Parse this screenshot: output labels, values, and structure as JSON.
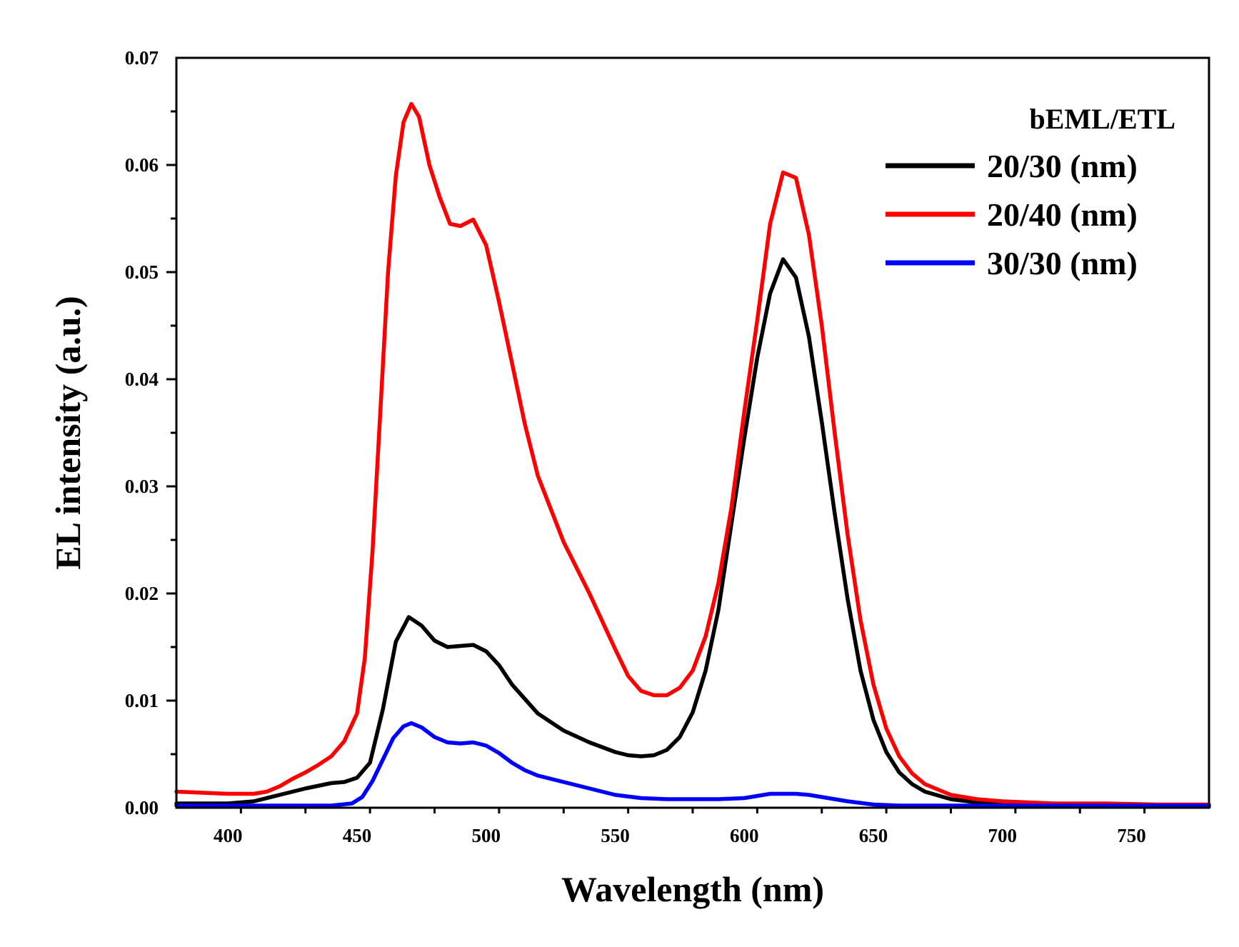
{
  "chart_data": {
    "type": "line",
    "title": "",
    "xlabel": "Wavelength (nm)",
    "ylabel": "EL intensity (a.u.)",
    "xlim": [
      380,
      780
    ],
    "ylim": [
      0,
      0.07
    ],
    "x_ticks": [
      400,
      450,
      500,
      550,
      600,
      650,
      700,
      750
    ],
    "x_tick_labels": [
      "400",
      "450",
      "500",
      "550",
      "600",
      "650",
      "700",
      "750"
    ],
    "y_ticks": [
      0,
      0.01,
      0.02,
      0.03,
      0.04,
      0.05,
      0.06,
      0.07
    ],
    "y_tick_labels": [
      "0.00",
      "0.01",
      "0.02",
      "0.03",
      "0.04",
      "0.05",
      "0.06",
      "0.07"
    ],
    "legend_title": "bEML/ETL",
    "legend_position": "top-right",
    "grid": false,
    "series": [
      {
        "name": "20/30 (nm)",
        "color": "#000000",
        "x": [
          380,
          400,
          410,
          420,
          430,
          440,
          445,
          450,
          455,
          460,
          465,
          470,
          475,
          480,
          485,
          490,
          495,
          500,
          505,
          510,
          520,
          530,
          540,
          550,
          555,
          560,
          565,
          570,
          575,
          580,
          585,
          590,
          595,
          600,
          605,
          610,
          615,
          620,
          625,
          630,
          635,
          640,
          645,
          650,
          655,
          660,
          665,
          670,
          680,
          690,
          700,
          710,
          720,
          740,
          760,
          780
        ],
        "y": [
          0.0004,
          0.0004,
          0.0006,
          0.0012,
          0.0018,
          0.0023,
          0.0024,
          0.0028,
          0.0042,
          0.0092,
          0.0155,
          0.0178,
          0.017,
          0.0156,
          0.015,
          0.0151,
          0.0152,
          0.0146,
          0.0133,
          0.0115,
          0.0088,
          0.0072,
          0.0061,
          0.0052,
          0.0049,
          0.0048,
          0.0049,
          0.0054,
          0.0066,
          0.0089,
          0.0128,
          0.0185,
          0.0265,
          0.0345,
          0.042,
          0.048,
          0.0512,
          0.0495,
          0.044,
          0.036,
          0.0275,
          0.0195,
          0.0128,
          0.0082,
          0.0052,
          0.0033,
          0.0022,
          0.0015,
          0.0008,
          0.0005,
          0.0003,
          0.0002,
          0.0001,
          0.0001,
          0.0001,
          0.0001
        ]
      },
      {
        "name": "20/40 (nm)",
        "color": "#ff0000",
        "x": [
          380,
          400,
          410,
          415,
          420,
          425,
          430,
          435,
          440,
          445,
          450,
          453,
          456,
          459,
          462,
          465,
          468,
          471,
          474,
          478,
          482,
          486,
          490,
          495,
          500,
          505,
          510,
          515,
          520,
          530,
          540,
          550,
          555,
          560,
          565,
          570,
          575,
          580,
          585,
          590,
          595,
          600,
          605,
          610,
          615,
          620,
          625,
          630,
          635,
          640,
          645,
          650,
          655,
          660,
          665,
          670,
          680,
          690,
          700,
          710,
          720,
          740,
          760,
          780
        ],
        "y": [
          0.0015,
          0.0013,
          0.0013,
          0.0015,
          0.002,
          0.0027,
          0.0033,
          0.004,
          0.0048,
          0.0062,
          0.0088,
          0.014,
          0.024,
          0.037,
          0.05,
          0.059,
          0.064,
          0.0657,
          0.0645,
          0.06,
          0.057,
          0.0545,
          0.0543,
          0.0549,
          0.0525,
          0.0472,
          0.0415,
          0.0358,
          0.031,
          0.0248,
          0.02,
          0.0148,
          0.0123,
          0.0109,
          0.0105,
          0.0105,
          0.0112,
          0.0128,
          0.016,
          0.021,
          0.028,
          0.037,
          0.0455,
          0.0545,
          0.0593,
          0.0588,
          0.0535,
          0.045,
          0.035,
          0.0255,
          0.0175,
          0.0115,
          0.0074,
          0.0048,
          0.0032,
          0.0022,
          0.0012,
          0.0008,
          0.0006,
          0.0005,
          0.0004,
          0.0004,
          0.0003,
          0.0003
        ]
      },
      {
        "name": "30/30 (nm)",
        "color": "#0000ff",
        "x": [
          380,
          400,
          420,
          440,
          448,
          452,
          456,
          460,
          464,
          468,
          471,
          475,
          480,
          485,
          490,
          495,
          500,
          505,
          510,
          515,
          520,
          530,
          540,
          550,
          560,
          570,
          580,
          590,
          600,
          605,
          610,
          615,
          620,
          625,
          630,
          640,
          650,
          660,
          680,
          700,
          720,
          740,
          760,
          780
        ],
        "y": [
          0.0002,
          0.0002,
          0.0002,
          0.0002,
          0.0004,
          0.001,
          0.0025,
          0.0045,
          0.0065,
          0.0076,
          0.0079,
          0.0075,
          0.0066,
          0.0061,
          0.006,
          0.0061,
          0.0058,
          0.0051,
          0.0042,
          0.0035,
          0.003,
          0.0024,
          0.0018,
          0.0012,
          0.0009,
          0.0008,
          0.0008,
          0.0008,
          0.0009,
          0.0011,
          0.0013,
          0.0013,
          0.0013,
          0.0012,
          0.001,
          0.0006,
          0.0003,
          0.0002,
          0.0002,
          0.0002,
          0.0002,
          0.0002,
          0.0002,
          0.0002
        ]
      }
    ]
  }
}
